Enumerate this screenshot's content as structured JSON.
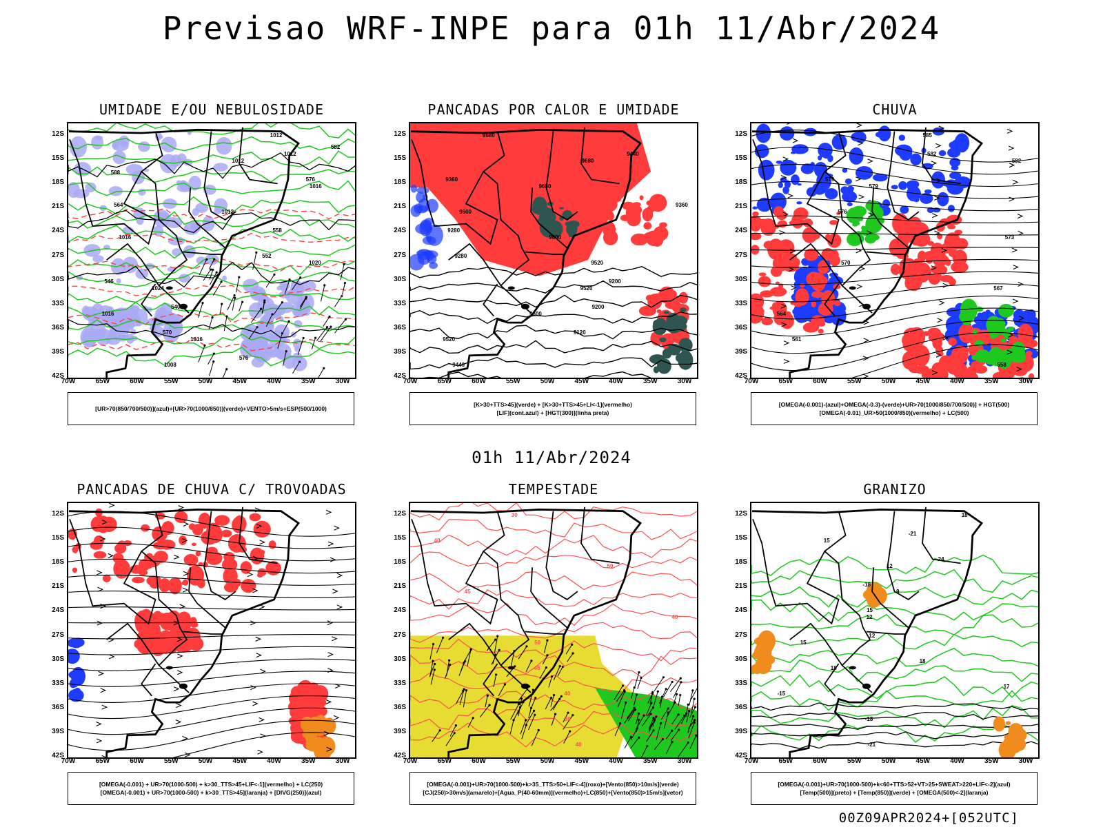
{
  "title": "Previsao WRF-INPE  para 01h 11/Abr/2024",
  "subtitle": "01h 11/Abr/2024",
  "footer": "00Z09APR2024+[052UTC]",
  "lat_ticks": [
    "12S",
    "15S",
    "18S",
    "21S",
    "24S",
    "27S",
    "30S",
    "33S",
    "36S",
    "39S",
    "42S"
  ],
  "lon_ticks": [
    "70W",
    "65W",
    "60W",
    "55W",
    "50W",
    "45W",
    "40W",
    "35W",
    "30W"
  ],
  "panels": [
    {
      "title": "UMIDADE E/OU NEBULOSIDADE",
      "legend": [
        "[UR>70(850/700/500)](azul)+[UR>70(1000/850)](verde)+VENTO>5m/s+ESP(500/1000)"
      ],
      "fills": [
        {
          "color": "#a9a9f5",
          "role": "UR>70 850/700/500"
        }
      ],
      "contours": [
        {
          "color": "#1ec81e"
        },
        {
          "color": "#000000"
        },
        {
          "color": "#ff4040"
        }
      ],
      "contour_labels": [
        "1012",
        "1012",
        "1016",
        "1012",
        "1016",
        "1020",
        "1024",
        "1016",
        "1016",
        "1008",
        "1012",
        "576",
        "564",
        "558",
        "552",
        "546",
        "540",
        "570",
        "576",
        "582",
        "588"
      ]
    },
    {
      "title": "PANCADAS POR CALOR E UMIDADE",
      "legend": [
        "[K>30+TTS>45](verde) + [K>30+TTS>45+LI<-1](vermelho)",
        "[LIF](cont.azul) + [HGT(300)](linha preta)"
      ],
      "fills": [
        {
          "color": "#ff3b3b"
        },
        {
          "color": "#2f5550"
        }
      ],
      "contour_labels": [
        "9680",
        "9680",
        "9680",
        "9600",
        "9600",
        "9520",
        "9520",
        "9600",
        "9520",
        "9440",
        "9440",
        "9360",
        "9360",
        "9280",
        "9280",
        "9200",
        "9200",
        "9120"
      ]
    },
    {
      "title": "CHUVA",
      "legend": [
        "[OMEGA(-0.001)-(azul)+OMEGA(-0.3)-(verde)+UR>70(1000/850/700/500)] + HGT(500)",
        "[OMEGA(-0.01)_UR>50(1000/850)(vermelho) + LC(500)"
      ],
      "fills": [
        {
          "color": "#1e3cff"
        },
        {
          "color": "#ff3b3b"
        },
        {
          "color": "#1ec81e"
        }
      ],
      "contour_labels": [
        "585",
        "582",
        "579",
        "576",
        "573",
        "570",
        "567",
        "564",
        "561",
        "558",
        "582",
        "579"
      ]
    },
    {
      "title": "PANCADAS DE CHUVA C/ TROVOADAS",
      "legend": [
        "[OMEGA(-0.001) + UR>70(1000-500) + k>30_TTS>45+LIF<-1](vermelho) + LC(250)",
        "[OMEGA(-0.001) + UR>70(1000-500) + k>30_TTS>45](laranja) + [DIVG(250)](azul)"
      ],
      "fills": [
        {
          "color": "#ff3b3b"
        },
        {
          "color": "#f08c1e"
        },
        {
          "color": "#1e3cff"
        }
      ]
    },
    {
      "title": "TEMPESTADE",
      "legend": [
        "[OMEGA(-0.001)+UR>70(1000-500)+k>35_TTS>50+LIF<-4](roxo)+[Vento(850)>10m/s](verde)",
        "[CJ(250)>30m/s](amarelo)+[Agua_P(40-60mm)](vermelho)+LC(850)+[Vento(850)>15m/s](vetor)"
      ],
      "fills": [
        {
          "color": "#e6dc32"
        },
        {
          "color": "#1ec81e"
        },
        {
          "color": "#ff5050"
        }
      ],
      "contour_labels": [
        "30",
        "40",
        "50",
        "45",
        "40",
        "50",
        "45",
        "40",
        "30",
        "40"
      ]
    },
    {
      "title": "GRANIZO",
      "legend": [
        "[OMEGA(-0.001)+UR>70(1000-500)+k<60+TTS>52+VT>25+SWEAT>220+LIF<-2](azul)",
        "[Temp(500)](preto) + [Temp(850)](verde) + [OMEGA(500)<-2](laranja)"
      ],
      "fills": [
        {
          "color": "#1ec81e"
        },
        {
          "color": "#f08c1e"
        }
      ],
      "contour_labels": [
        "18",
        "15",
        "12",
        "9",
        "12",
        "15",
        "18",
        "-15",
        "-18",
        "-21",
        "-21",
        "-24",
        "-18",
        "15",
        "12",
        "18",
        "17"
      ]
    }
  ]
}
